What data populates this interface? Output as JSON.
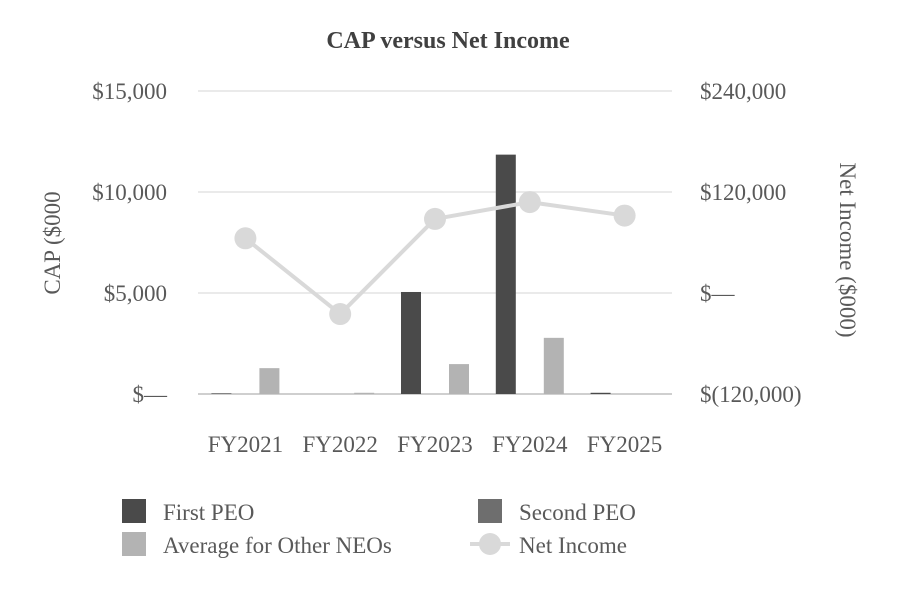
{
  "chart_data": {
    "type": "bar",
    "title": "CAP versus Net Income",
    "categories": [
      "FY2021",
      "FY2022",
      "FY2023",
      "FY2024",
      "FY2025"
    ],
    "ylabel": "CAP ($000",
    "y2label": "Net Income ($000)",
    "ylim": [
      0,
      15000
    ],
    "y2lim": [
      -120000,
      240000
    ],
    "yticks": [
      0,
      5000,
      10000,
      15000
    ],
    "yticklabels": [
      "$—",
      "$5,000",
      "$10,000",
      "$15,000"
    ],
    "y2ticks": [
      -120000,
      0,
      120000,
      240000
    ],
    "y2ticklabels": [
      "$(120,000)",
      "$—",
      "$120,000",
      "$240,000"
    ],
    "grid": true,
    "series": [
      {
        "name": "First PEO",
        "type": "bar",
        "axis": "left",
        "color": "#4a4a4a",
        "values": [
          30,
          0,
          5050,
          11850,
          60
        ]
      },
      {
        "name": "Second PEO",
        "type": "bar",
        "axis": "left",
        "color": "#6e6e6e",
        "values": [
          0,
          0,
          0,
          0,
          0
        ]
      },
      {
        "name": "Average for Other NEOs",
        "type": "bar",
        "axis": "left",
        "color": "#b3b3b3",
        "values": [
          1280,
          60,
          1480,
          2780,
          0
        ]
      },
      {
        "name": "Net Income",
        "type": "line",
        "axis": "right",
        "color": "#d9d9d9",
        "values": [
          65000,
          -25000,
          88000,
          108000,
          92000
        ]
      }
    ],
    "legend": {
      "position": "bottom",
      "entries": [
        "First PEO",
        "Second PEO",
        "Average for Other NEOs",
        "Net Income"
      ]
    }
  }
}
